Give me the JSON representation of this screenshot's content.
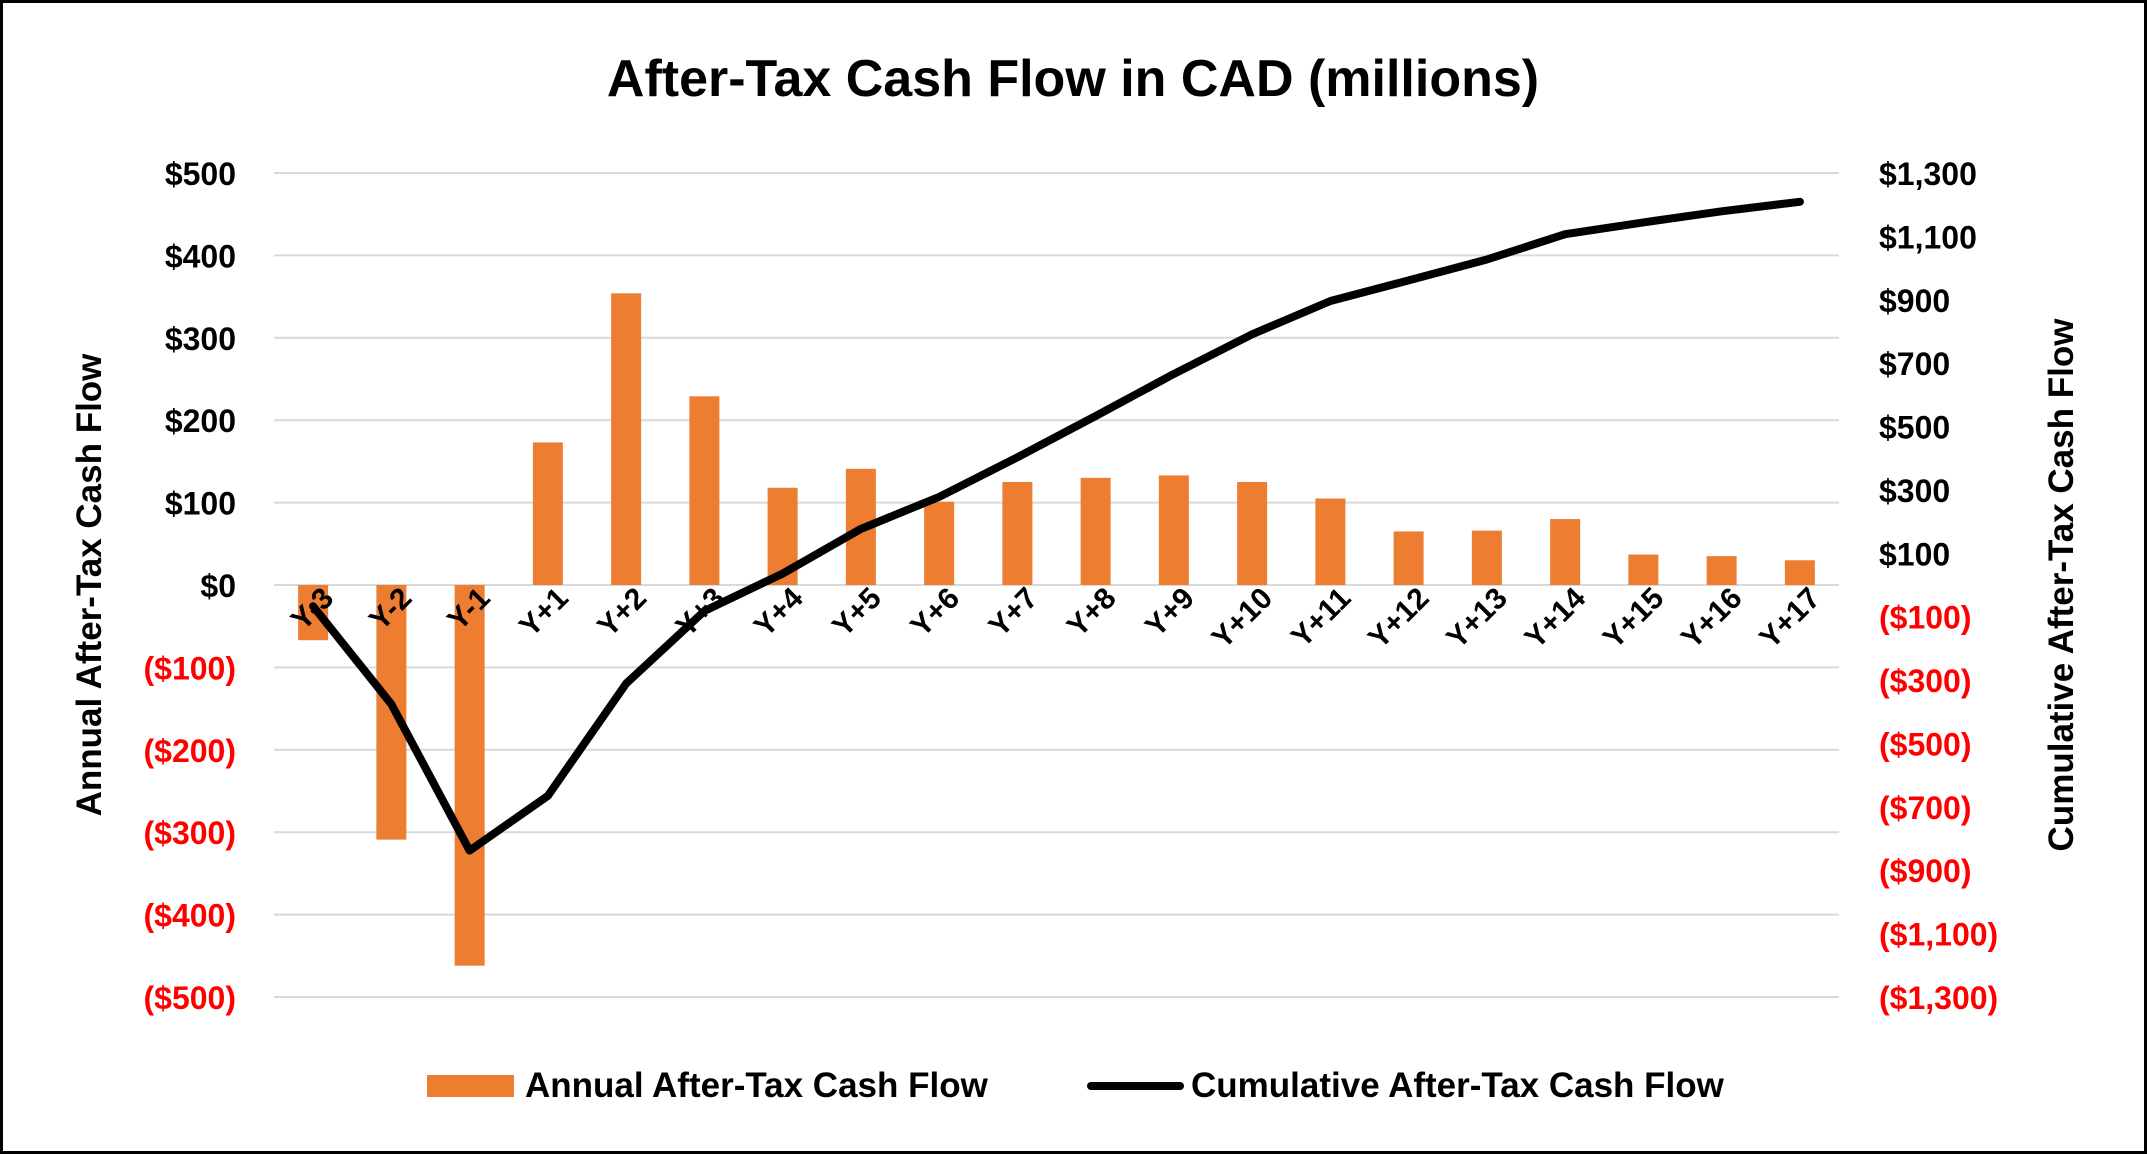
{
  "chart_data": {
    "type": "bar+line",
    "title": "After-Tax Cash Flow in CAD (millions)",
    "categories": [
      "Y-3",
      "Y-2",
      "Y-1",
      "Y+1",
      "Y+2",
      "Y+3",
      "Y+4",
      "Y+5",
      "Y+6",
      "Y+7",
      "Y+8",
      "Y+9",
      "Y+10",
      "Y+11",
      "Y+12",
      "Y+13",
      "Y+14",
      "Y+15",
      "Y+16",
      "Y+17"
    ],
    "series": [
      {
        "name": "Annual After-Tax Cash Flow",
        "type": "bar",
        "axis": "left",
        "color": "#ED7D31",
        "values": [
          -67,
          -309,
          -462,
          173,
          354,
          229,
          118,
          141,
          101,
          125,
          130,
          133,
          125,
          105,
          65,
          66,
          80,
          37,
          35,
          30
        ]
      },
      {
        "name": "Cumulative After-Tax Cash Flow",
        "type": "line",
        "axis": "right",
        "color": "#000000",
        "values": [
          -67,
          -376,
          -838,
          -665,
          -311,
          -82,
          36,
          177,
          278,
          403,
          533,
          666,
          791,
          896,
          961,
          1027,
          1107,
          1144,
          1179,
          1209
        ]
      }
    ],
    "ylabel": "Annual After-Tax Cash Flow",
    "y2label": "Cumulative After-Tax Cash Flow",
    "ylim": [
      -500,
      500
    ],
    "y2lim": [
      -1300,
      1300
    ],
    "yticks": [
      "$500",
      "$400",
      "$300",
      "$200",
      "$100",
      "$0",
      "($100)",
      "($200)",
      "($300)",
      "($400)",
      "($500)"
    ],
    "y2ticks": [
      "$1,300",
      "$1,100",
      "$900",
      "$700",
      "$500",
      "$300",
      "$100",
      "($100)",
      "($300)",
      "($500)",
      "($700)",
      "($900)",
      "($1,100)",
      "($1,300)"
    ],
    "negative_tick_color": "#FF0000",
    "grid": true,
    "legend": "bottom"
  }
}
